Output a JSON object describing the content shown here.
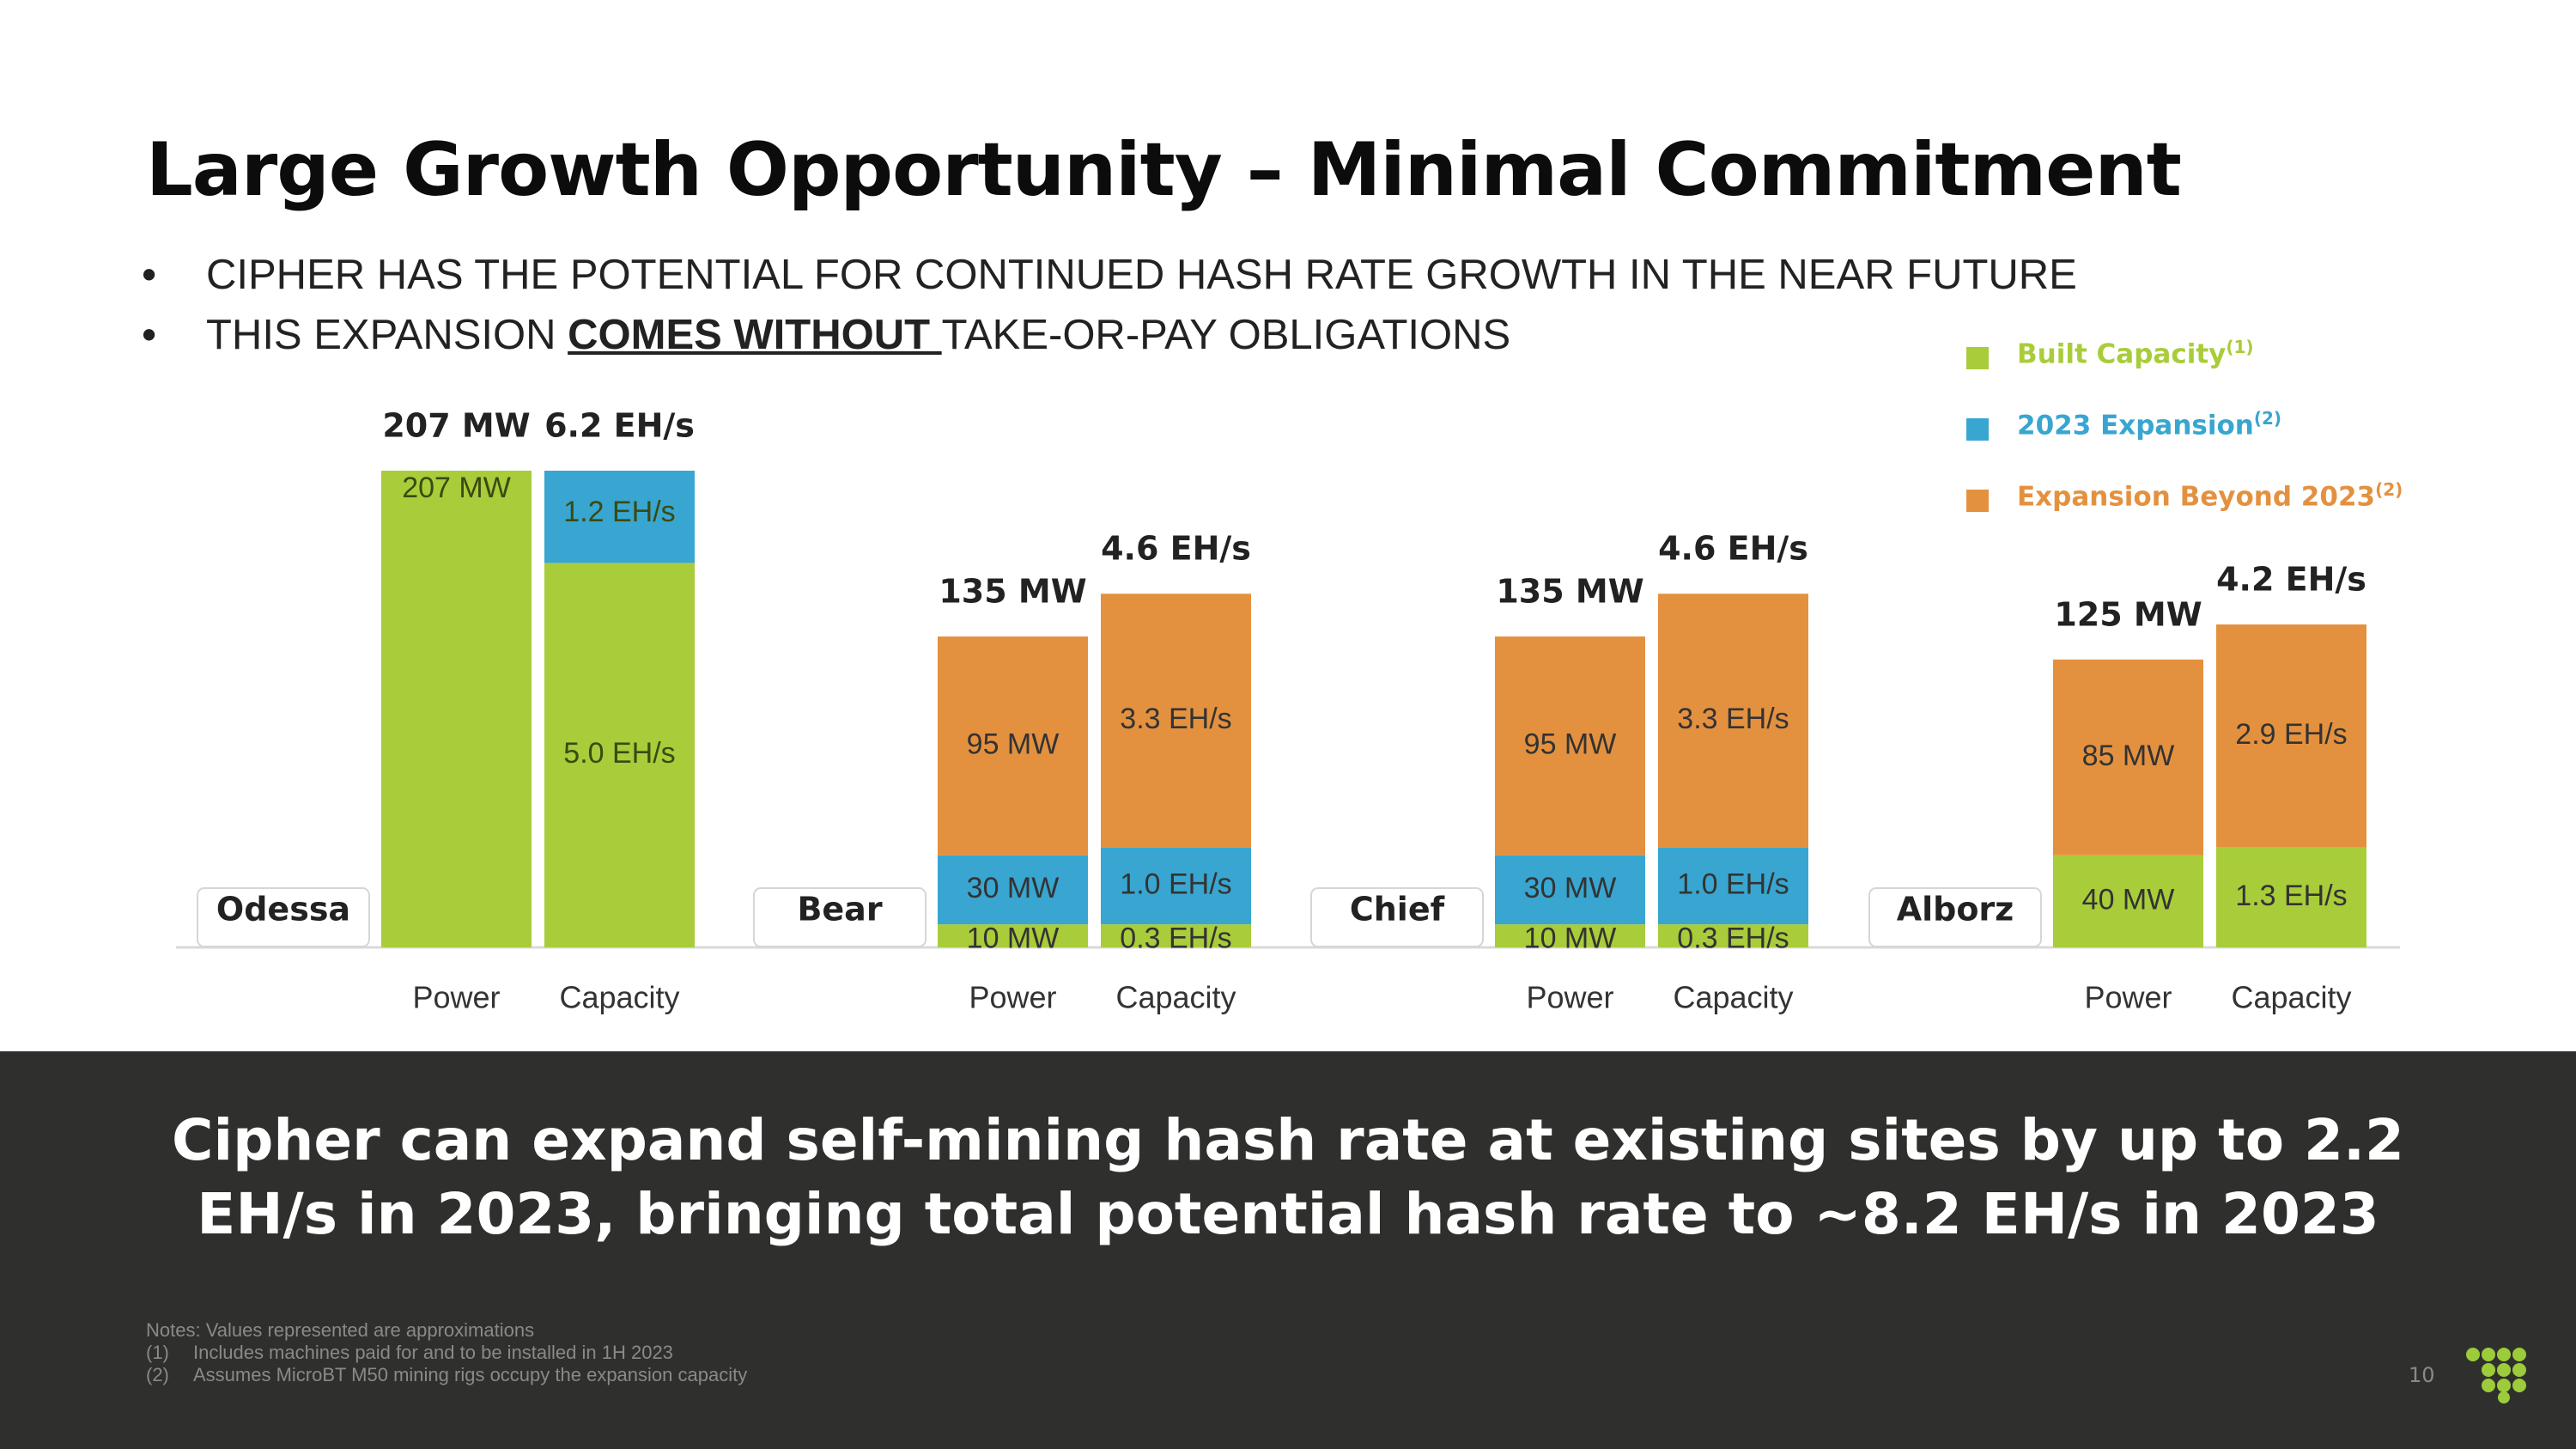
{
  "title": "Large Growth Opportunity – Minimal Commitment",
  "bullets": {
    "b1": "CIPHER HAS THE POTENTIAL FOR CONTINUED HASH RATE GROWTH IN THE NEAR FUTURE",
    "b2_pre": "THIS EXPANSION ",
    "b2_emph": "COMES WITHOUT ",
    "b2_post": "TAKE-OR-PAY OBLIGATIONS"
  },
  "legend": [
    {
      "label": "Built Capacity",
      "note": "(1)",
      "color": "#a9cc3a"
    },
    {
      "label": "2023 Expansion",
      "note": "(2)",
      "color": "#38a6d0"
    },
    {
      "label": "Expansion Beyond 2023",
      "note": "(2)",
      "color": "#e4913f"
    }
  ],
  "chart_data": {
    "type": "bar",
    "stacked": true,
    "series_names": [
      "Built Capacity",
      "2023 Expansion",
      "Expansion Beyond 2023"
    ],
    "sites": [
      {
        "name": "Odessa",
        "power": {
          "label": "Power",
          "total": 207,
          "total_label": "207 MW",
          "segments": [
            {
              "series": "Built Capacity",
              "value": 207,
              "label": "207 MW"
            }
          ]
        },
        "capacity": {
          "label": "Capacity",
          "total": 6.2,
          "total_label": "6.2 EH/s",
          "segments": [
            {
              "series": "Built Capacity",
              "value": 5.0,
              "label": "5.0 EH/s"
            },
            {
              "series": "2023 Expansion",
              "value": 1.2,
              "label": "1.2 EH/s"
            }
          ]
        }
      },
      {
        "name": "Bear",
        "power": {
          "label": "Power",
          "total": 135,
          "total_label": "135 MW",
          "segments": [
            {
              "series": "Built Capacity",
              "value": 10,
              "label": "10 MW"
            },
            {
              "series": "2023 Expansion",
              "value": 30,
              "label": "30 MW"
            },
            {
              "series": "Expansion Beyond 2023",
              "value": 95,
              "label": "95 MW"
            }
          ]
        },
        "capacity": {
          "label": "Capacity",
          "total": 4.6,
          "total_label": "4.6 EH/s",
          "segments": [
            {
              "series": "Built Capacity",
              "value": 0.3,
              "label": "0.3 EH/s"
            },
            {
              "series": "2023 Expansion",
              "value": 1.0,
              "label": "1.0 EH/s"
            },
            {
              "series": "Expansion Beyond 2023",
              "value": 3.3,
              "label": "3.3 EH/s"
            }
          ]
        }
      },
      {
        "name": "Chief",
        "power": {
          "label": "Power",
          "total": 135,
          "total_label": "135 MW",
          "segments": [
            {
              "series": "Built Capacity",
              "value": 10,
              "label": "10 MW"
            },
            {
              "series": "2023 Expansion",
              "value": 30,
              "label": "30 MW"
            },
            {
              "series": "Expansion Beyond 2023",
              "value": 95,
              "label": "95 MW"
            }
          ]
        },
        "capacity": {
          "label": "Capacity",
          "total": 4.6,
          "total_label": "4.6 EH/s",
          "segments": [
            {
              "series": "Built Capacity",
              "value": 0.3,
              "label": "0.3 EH/s"
            },
            {
              "series": "2023 Expansion",
              "value": 1.0,
              "label": "1.0 EH/s"
            },
            {
              "series": "Expansion Beyond 2023",
              "value": 3.3,
              "label": "3.3 EH/s"
            }
          ]
        }
      },
      {
        "name": "Alborz",
        "power": {
          "label": "Power",
          "total": 125,
          "total_label": "125 MW",
          "segments": [
            {
              "series": "Built Capacity",
              "value": 40,
              "label": "40 MW"
            },
            {
              "series": "Expansion Beyond 2023",
              "value": 85,
              "label": "85 MW"
            }
          ]
        },
        "capacity": {
          "label": "Capacity",
          "total": 4.2,
          "total_label": "4.2 EH/s",
          "segments": [
            {
              "series": "Built Capacity",
              "value": 1.3,
              "label": "1.3 EH/s"
            },
            {
              "series": "Expansion Beyond 2023",
              "value": 2.9,
              "label": "2.9 EH/s"
            }
          ]
        }
      }
    ]
  },
  "tagline": "Cipher can expand self-mining hash rate at existing sites by up to 2.2 EH/s in 2023, bringing total potential hash rate to ~8.2 EH/s in 2023",
  "notes": {
    "header": "Notes: Values represented are approximations",
    "items": [
      {
        "num": "(1)",
        "text": "Includes machines paid for and to be installed in 1H 2023"
      },
      {
        "num": "(2)",
        "text": "Assumes MicroBT M50 mining rigs occupy the expansion capacity"
      }
    ]
  },
  "page_number": "10",
  "colors": {
    "built": "#a9cc3a",
    "expansion_2023": "#38a6d0",
    "expansion_beyond": "#e4913f",
    "banner": "#2f302d",
    "logo": "#9ccb3b"
  }
}
